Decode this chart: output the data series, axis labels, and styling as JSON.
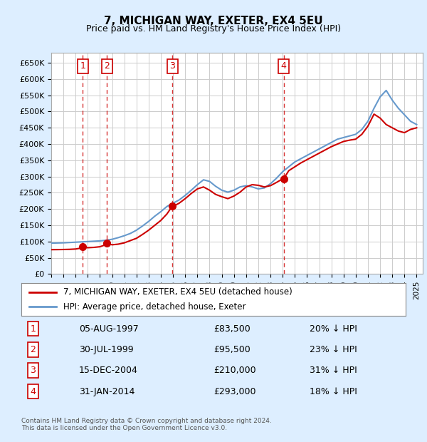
{
  "title": "7, MICHIGAN WAY, EXETER, EX4 5EU",
  "subtitle": "Price paid vs. HM Land Registry's House Price Index (HPI)",
  "footer": "Contains HM Land Registry data © Crown copyright and database right 2024.\nThis data is licensed under the Open Government Licence v3.0.",
  "legend_line1": "7, MICHIGAN WAY, EXETER, EX4 5EU (detached house)",
  "legend_line2": "HPI: Average price, detached house, Exeter",
  "transactions": [
    {
      "id": 1,
      "date": "05-AUG-1997",
      "price": 83500,
      "pct": "20%",
      "x": 1997.59
    },
    {
      "id": 2,
      "date": "30-JUL-1999",
      "price": 95500,
      "pct": "23%",
      "x": 1999.58
    },
    {
      "id": 3,
      "date": "15-DEC-2004",
      "price": 210000,
      "pct": "31%",
      "x": 2004.96
    },
    {
      "id": 4,
      "date": "31-JAN-2014",
      "price": 293000,
      "pct": "18%",
      "x": 2014.08
    }
  ],
  "hpi_color": "#6699cc",
  "price_color": "#cc0000",
  "vline_color": "#cc0000",
  "background_color": "#ddeeff",
  "plot_bg": "#ffffff",
  "ylim": [
    0,
    680000
  ],
  "yticks": [
    0,
    50000,
    100000,
    150000,
    200000,
    250000,
    300000,
    350000,
    400000,
    450000,
    500000,
    550000,
    600000,
    650000
  ],
  "xlim_start": 1995.0,
  "xlim_end": 2025.5,
  "hpi_x": [
    1995,
    1995.5,
    1996,
    1996.5,
    1997,
    1997.5,
    1998,
    1998.5,
    1999,
    1999.5,
    2000,
    2000.5,
    2001,
    2001.5,
    2002,
    2002.5,
    2003,
    2003.5,
    2004,
    2004.5,
    2005,
    2005.5,
    2006,
    2006.5,
    2007,
    2007.5,
    2008,
    2008.5,
    2009,
    2009.5,
    2010,
    2010.5,
    2011,
    2011.5,
    2012,
    2012.5,
    2013,
    2013.5,
    2014,
    2014.5,
    2015,
    2015.5,
    2016,
    2016.5,
    2017,
    2017.5,
    2018,
    2018.5,
    2019,
    2019.5,
    2020,
    2020.5,
    2021,
    2021.5,
    2022,
    2022.5,
    2023,
    2023.5,
    2024,
    2024.5,
    2025
  ],
  "hpi_y": [
    95000,
    95500,
    96000,
    97000,
    98000,
    99000,
    100000,
    101000,
    102000,
    104000,
    107000,
    112000,
    118000,
    125000,
    135000,
    148000,
    162000,
    178000,
    192000,
    208000,
    218000,
    228000,
    242000,
    258000,
    275000,
    290000,
    285000,
    270000,
    258000,
    252000,
    258000,
    268000,
    272000,
    268000,
    262000,
    265000,
    278000,
    295000,
    315000,
    330000,
    345000,
    355000,
    365000,
    375000,
    385000,
    395000,
    405000,
    415000,
    420000,
    425000,
    430000,
    445000,
    470000,
    510000,
    545000,
    565000,
    535000,
    510000,
    490000,
    470000,
    460000
  ],
  "price_x": [
    1995,
    1995.5,
    1996,
    1996.5,
    1997,
    1997.3,
    1997.59,
    1997.8,
    1998,
    1998.5,
    1999,
    1999.3,
    1999.58,
    1999.8,
    2000,
    2000.5,
    2001,
    2001.5,
    2002,
    2002.5,
    2003,
    2003.5,
    2004,
    2004.5,
    2004.96,
    2005,
    2005.5,
    2006,
    2006.5,
    2007,
    2007.5,
    2008,
    2008.5,
    2009,
    2009.5,
    2010,
    2010.5,
    2011,
    2011.5,
    2012,
    2012.5,
    2013,
    2013.5,
    2014,
    2014.08,
    2014.5,
    2015,
    2015.5,
    2016,
    2016.5,
    2017,
    2017.5,
    2018,
    2018.5,
    2019,
    2019.5,
    2020,
    2020.5,
    2021,
    2021.5,
    2022,
    2022.5,
    2023,
    2023.5,
    2024,
    2024.5,
    2025
  ],
  "price_y": [
    75000,
    75200,
    75500,
    76000,
    77000,
    79000,
    83500,
    82000,
    81000,
    82000,
    84000,
    88000,
    95500,
    92000,
    90000,
    92000,
    96000,
    103000,
    110000,
    122000,
    135000,
    150000,
    165000,
    185000,
    210000,
    208000,
    218000,
    232000,
    248000,
    262000,
    268000,
    258000,
    245000,
    238000,
    232000,
    240000,
    252000,
    268000,
    275000,
    273000,
    268000,
    272000,
    282000,
    293000,
    293000,
    318000,
    330000,
    342000,
    352000,
    362000,
    372000,
    382000,
    392000,
    400000,
    408000,
    412000,
    415000,
    430000,
    455000,
    492000,
    480000,
    460000,
    450000,
    440000,
    435000,
    445000,
    450000
  ]
}
